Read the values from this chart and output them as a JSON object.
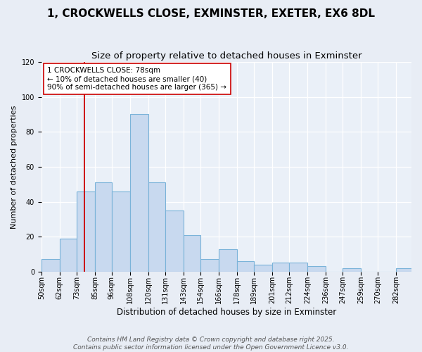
{
  "title": "1, CROCKWELLS CLOSE, EXMINSTER, EXETER, EX6 8DL",
  "subtitle": "Size of property relative to detached houses in Exminster",
  "xlabel": "Distribution of detached houses by size in Exminster",
  "ylabel": "Number of detached properties",
  "bar_left_edges": [
    50,
    62,
    73,
    85,
    96,
    108,
    120,
    131,
    143,
    154,
    166,
    178,
    189,
    201,
    212,
    224,
    236,
    247,
    259,
    270,
    282
  ],
  "bar_heights": [
    7,
    19,
    46,
    51,
    46,
    90,
    51,
    35,
    21,
    7,
    13,
    6,
    4,
    5,
    5,
    3,
    0,
    2,
    0,
    0,
    2
  ],
  "bin_widths": [
    12,
    11,
    12,
    11,
    12,
    12,
    11,
    12,
    11,
    12,
    12,
    11,
    12,
    11,
    12,
    12,
    11,
    12,
    11,
    12,
    10
  ],
  "bar_color": "#c8d9ef",
  "bar_edge_color": "#7ab3d9",
  "vline_x": 78,
  "vline_color": "#cc0000",
  "annotation_title": "1 CROCKWELLS CLOSE: 78sqm",
  "annotation_line1": "← 10% of detached houses are smaller (40)",
  "annotation_line2": "90% of semi-detached houses are larger (365) →",
  "annotation_box_facecolor": "#ffffff",
  "annotation_box_edgecolor": "#cc0000",
  "ylim_max": 120,
  "yticks": [
    0,
    20,
    40,
    60,
    80,
    100,
    120
  ],
  "xtick_labels": [
    "50sqm",
    "62sqm",
    "73sqm",
    "85sqm",
    "96sqm",
    "108sqm",
    "120sqm",
    "131sqm",
    "143sqm",
    "154sqm",
    "166sqm",
    "178sqm",
    "189sqm",
    "201sqm",
    "212sqm",
    "224sqm",
    "236sqm",
    "247sqm",
    "259sqm",
    "270sqm",
    "282sqm"
  ],
  "fig_bg_color": "#e8edf5",
  "ax_bg_color": "#eaf0f8",
  "grid_color": "#ffffff",
  "footer1": "Contains HM Land Registry data © Crown copyright and database right 2025.",
  "footer2": "Contains public sector information licensed under the Open Government Licence v3.0.",
  "title_fontsize": 11,
  "subtitle_fontsize": 9.5,
  "xlabel_fontsize": 8.5,
  "ylabel_fontsize": 8,
  "tick_fontsize": 7,
  "annotation_fontsize": 7.5,
  "footer_fontsize": 6.5
}
